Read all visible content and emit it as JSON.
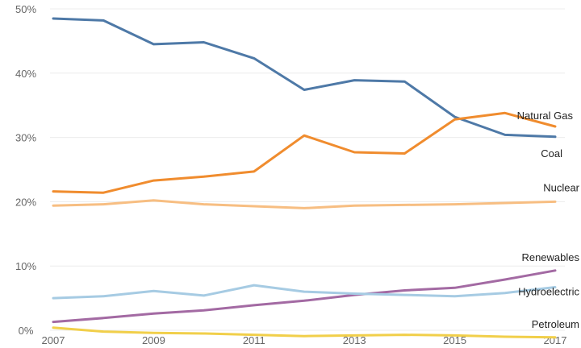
{
  "chart_data": {
    "type": "line",
    "x": [
      2007,
      2008,
      2009,
      2010,
      2011,
      2012,
      2013,
      2014,
      2015,
      2016,
      2017
    ],
    "x_tick_labels": [
      "2007",
      "2009",
      "2011",
      "2013",
      "2015",
      "2017"
    ],
    "y_tick_labels": [
      "50%",
      "40%",
      "30%",
      "20%",
      "10%",
      "0%"
    ],
    "ylim": [
      0,
      50
    ],
    "grid": "horizontal",
    "legend": "inline labels at line ends",
    "series": [
      {
        "name": "Coal",
        "color": "#4e79a7",
        "values": [
          48.5,
          48.2,
          44.5,
          44.8,
          42.3,
          37.4,
          38.9,
          38.7,
          33.2,
          30.4,
          30.1
        ]
      },
      {
        "name": "Natural Gas",
        "color": "#f08c2e",
        "values": [
          21.6,
          21.4,
          23.3,
          23.9,
          24.7,
          30.3,
          27.7,
          27.5,
          32.8,
          33.8,
          31.7
        ]
      },
      {
        "name": "Nuclear",
        "color": "#f7be82",
        "values": [
          19.4,
          19.6,
          20.2,
          19.6,
          19.3,
          19.0,
          19.4,
          19.5,
          19.6,
          19.8,
          20.0
        ]
      },
      {
        "name": "Renewables",
        "color": "#a36aa3",
        "values": [
          1.3,
          1.9,
          2.6,
          3.1,
          3.9,
          4.6,
          5.5,
          6.2,
          6.6,
          7.9,
          9.3
        ]
      },
      {
        "name": "Hydroelectric",
        "color": "#a6cbe3",
        "values": [
          5.0,
          5.3,
          6.1,
          5.4,
          7.0,
          6.0,
          5.7,
          5.5,
          5.3,
          5.8,
          6.7
        ]
      },
      {
        "name": "Petroleum",
        "color": "#f1cf4a",
        "values": [
          0.4,
          -0.2,
          -0.4,
          -0.5,
          -0.7,
          -0.9,
          -0.8,
          -0.7,
          -0.8,
          -1.0,
          -1.1
        ]
      }
    ]
  }
}
